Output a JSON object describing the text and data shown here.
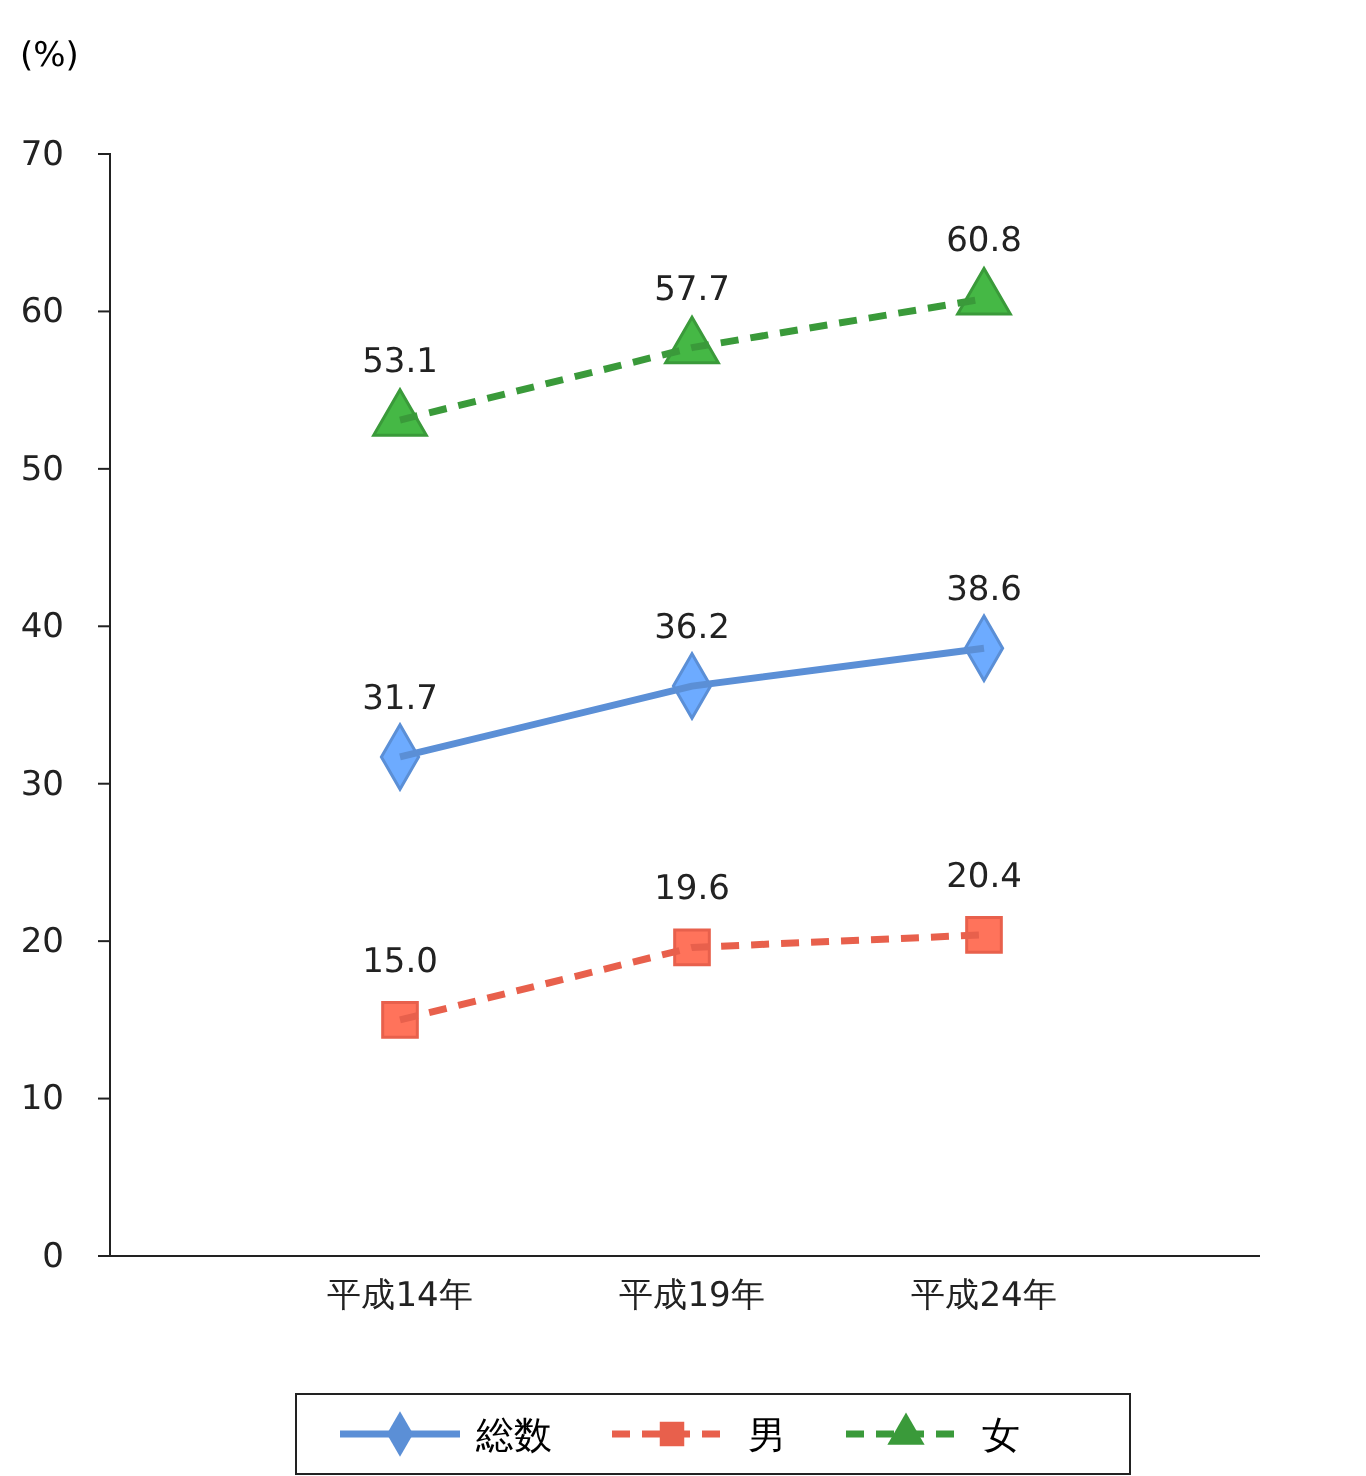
{
  "chart_data": {
    "type": "line",
    "ylabel": "(%)",
    "categories": [
      "平成14年",
      "平成19年",
      "平成24年"
    ],
    "ylim": [
      0,
      70
    ],
    "yticks": [
      0,
      10,
      20,
      30,
      40,
      50,
      60,
      70
    ],
    "grid": false,
    "legend": "bottom",
    "series": [
      {
        "name": "総数",
        "color": "#5b8fd6",
        "values": [
          31.7,
          36.2,
          38.6
        ],
        "value_labels": [
          "31.7",
          "36.2",
          "38.6"
        ],
        "marker": "diamond",
        "line_style": "solid"
      },
      {
        "name": "男",
        "color": "#e8604c",
        "values": [
          15.0,
          19.6,
          20.4
        ],
        "value_labels": [
          "15.0",
          "19.6",
          "20.4"
        ],
        "marker": "square",
        "line_style": "dashed"
      },
      {
        "name": "女",
        "color": "#3a9a3a",
        "values": [
          53.1,
          57.7,
          60.8
        ],
        "value_labels": [
          "53.1",
          "57.7",
          "60.8"
        ],
        "marker": "triangle",
        "line_style": "dashed"
      }
    ]
  }
}
